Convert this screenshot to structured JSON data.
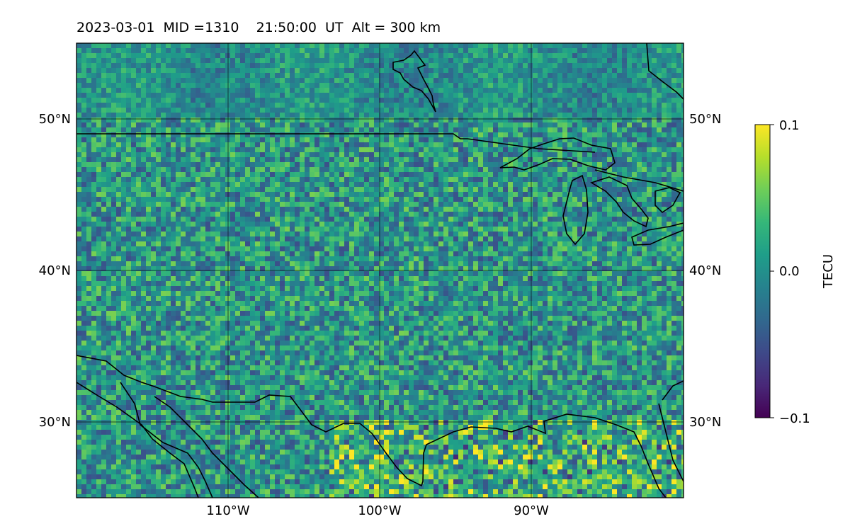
{
  "map": {
    "title": "2023-03-01  MID =1310    21:50:00  UT  Alt = 300 km",
    "lon_range": [
      -120,
      -80
    ],
    "lat_range": [
      25,
      55
    ],
    "lon_ticks": [
      {
        "value": -110,
        "label": "110°W"
      },
      {
        "value": -100,
        "label": "100°W"
      },
      {
        "value": -90,
        "label": "90°W"
      }
    ],
    "lat_ticks": [
      {
        "value": 50,
        "label": "50°N"
      },
      {
        "value": 40,
        "label": "40°N"
      },
      {
        "value": 30,
        "label": "30°N"
      }
    ],
    "colormap": "viridis",
    "grid": true
  },
  "colorbar": {
    "label": "TECU",
    "range": [
      -0.1,
      0.1
    ],
    "ticks": [
      {
        "value": 0.1,
        "label": "0.1"
      },
      {
        "value": 0.0,
        "label": "0.0"
      },
      {
        "value": -0.1,
        "label": "−0.1"
      }
    ],
    "colors": [
      "#440154",
      "#482878",
      "#3e4989",
      "#31688e",
      "#26828e",
      "#1f9e89",
      "#35b779",
      "#6ece58",
      "#b5de2b",
      "#fde725"
    ]
  }
}
